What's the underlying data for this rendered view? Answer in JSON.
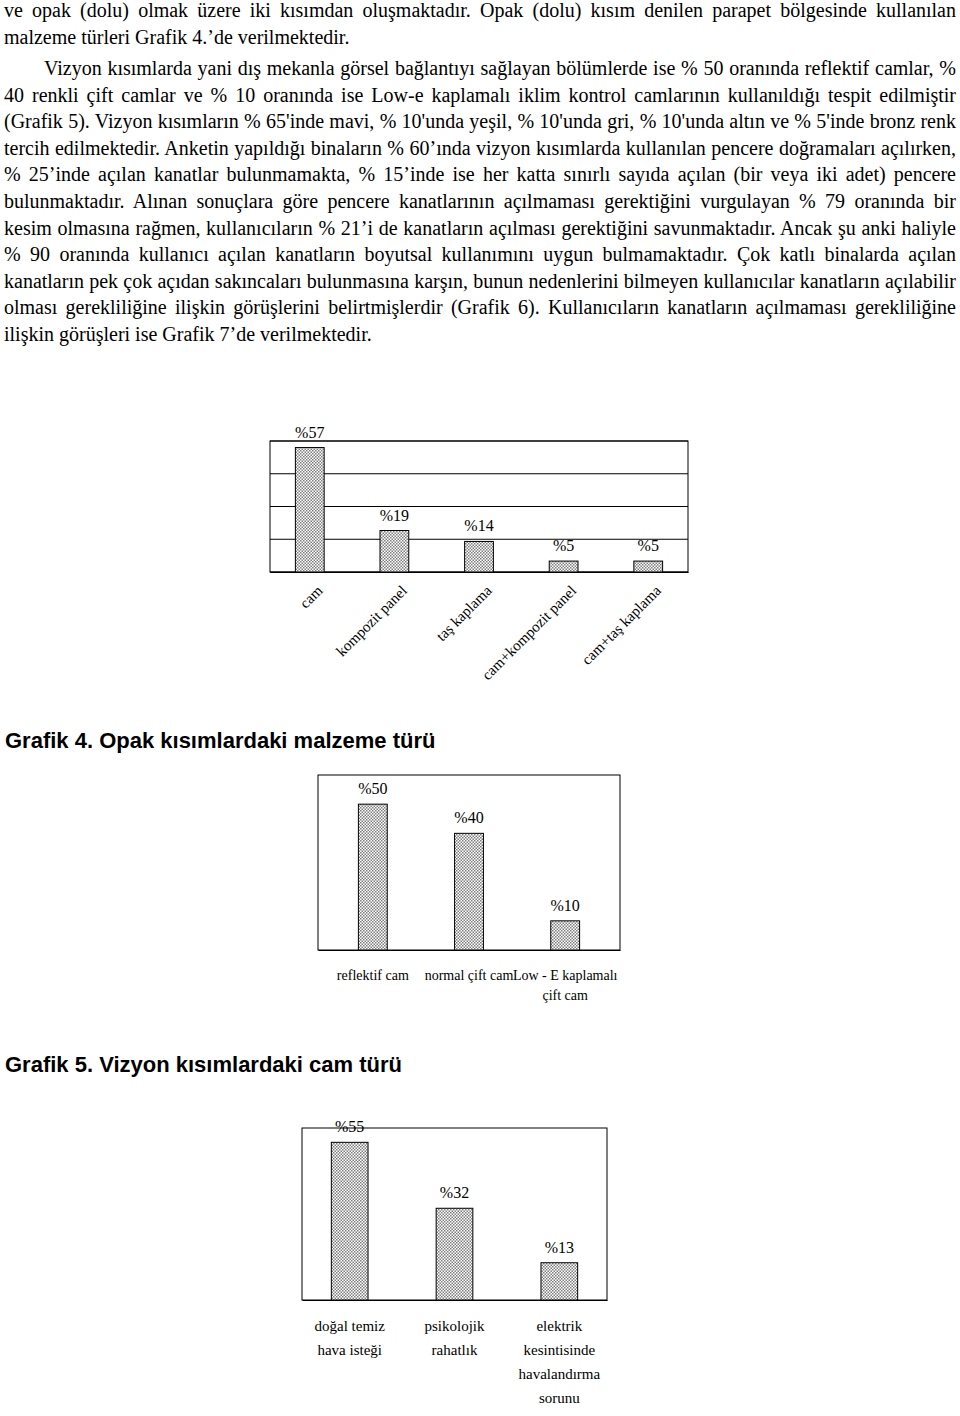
{
  "text": {
    "paragraphs": [
      "ve opak (dolu) olmak üzere iki kısımdan oluşmaktadır. Opak (dolu) kısım denilen parapet bölgesinde kullanılan malzeme türleri Grafik 4.’de verilmektedir.",
      "Vizyon kısımlarda yani dış mekanla görsel bağlantıyı sağlayan bölümlerde ise % 50 oranında reflektif camlar, % 40 renkli çift camlar ve % 10 oranında ise Low-e kaplamalı iklim kontrol camlarının kullanıldığı tespit edilmiştir (Grafik 5). Vizyon kısımların % 65'inde mavi, % 10'unda yeşil, % 10'unda gri, % 10'unda altın ve % 5'inde bronz renk tercih edilmektedir. Anketin yapıldığı binaların % 60’ında vizyon kısımlarda kullanılan pencere doğramaları açılırken, % 25’inde açılan kanatlar bulunmamakta, % 15’inde ise her katta sınırlı sayıda açılan (bir veya iki adet) pencere bulunmaktadır. Alınan sonuçlara göre pencere kanatlarının açılmaması gerektiğini vurgulayan % 79 oranında bir kesim olmasına rağmen, kullanıcıların % 21’i de kanatların açılması gerektiğini savunmaktadır. Ancak şu anki haliyle % 90 oranında kullanıcı açılan kanatların boyutsal kullanımını uygun bulmamaktadır. Çok katlı binalarda açılan kanatların pek çok açıdan sakıncaları bulunmasına karşın, bunun nedenlerini bilmeyen kullanıcılar kanatların açılabilir olması gerekliliğine ilişkin görüşlerini belirtmişlerdir (Grafik 6). Kullanıcıların kanatların açılmaması gerekliliğine ilişkin görüşleri ise Grafik 7’de verilmektedir."
    ]
  },
  "chart_data": [
    {
      "type": "bar",
      "title": "Grafik 4. Opak kısımlardaki malzeme türü",
      "categories": [
        "cam",
        "kompozit panel",
        "taş kaplama",
        "cam+kompozit panel",
        "cam+taş kaplama"
      ],
      "values": [
        57,
        19,
        14,
        5,
        5
      ],
      "value_labels": [
        "%57",
        "%19",
        "%14",
        "%5",
        "%5"
      ],
      "color": "#808080",
      "ylim": [
        0,
        60
      ],
      "yticks": [
        0,
        15,
        30,
        45,
        60
      ],
      "grid": true,
      "data_labels": true,
      "tick_labels": "x"
    },
    {
      "type": "bar",
      "title": "Grafik 5. Vizyon kısımlardaki cam türü",
      "categories": [
        "reflektif cam",
        "normal çift cam",
        "Low - E kaplamalı çift cam"
      ],
      "values": [
        50,
        40,
        10
      ],
      "value_labels": [
        "%50",
        "%40",
        "%10"
      ],
      "color": "#808080",
      "ylim": [
        0,
        60
      ],
      "grid": false,
      "data_labels": true,
      "tick_labels": "x"
    },
    {
      "type": "bar",
      "categories": [
        "doğal temiz hava isteği",
        "psikolojik rahatlık",
        "elektrik kesintisinde havalandırma sorunu"
      ],
      "values": [
        55,
        32,
        13
      ],
      "value_labels": [
        "%55",
        "%32",
        "%13"
      ],
      "color": "#808080",
      "ylim": [
        0,
        60
      ],
      "grid": false,
      "data_labels": true,
      "tick_labels": "x"
    }
  ]
}
